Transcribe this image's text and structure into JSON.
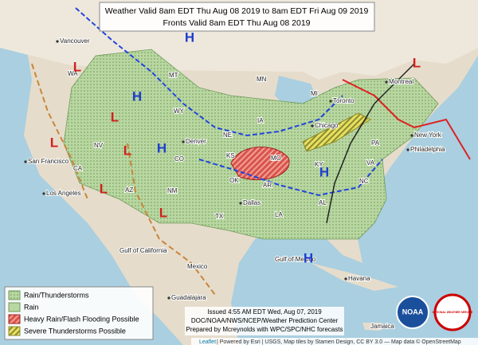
{
  "header": {
    "lines": [
      "Weather Valid 8am EDT Thu Aug 08 2019 to 8am EDT Fri Aug 09 2019",
      "Fronts Valid 8am EDT Thu Aug 08 2019"
    ]
  },
  "legend": {
    "items": [
      "Rain/Thunderstorms",
      "Rain",
      "Heavy Rain/Flash Flooding Possible",
      "Severe Thunderstorms Possible"
    ]
  },
  "credits": {
    "lines": [
      "Issued 4:55 AM EDT Wed, Aug 07, 2019",
      "DOC/NOAA/NWS/NCEP/Weather Prediction Center",
      "Prepared by Mcreynolds with WPC/SPC/NHC forecasts"
    ]
  },
  "attribution": {
    "link": "Leaflet",
    "text": "| Powered by Esri | USGS, Map tiles by Stamen Design, CC BY 3.0 — Map data © OpenStreetMap"
  },
  "logos": [
    "NOAA",
    "NATIONAL WEATHER SERVICE"
  ],
  "places": [
    "Vancouver",
    "WA",
    "MT",
    "MN",
    "Toronto",
    "Montreal",
    "WY",
    "IA",
    "Chicago",
    "PA",
    "New York",
    "Philadelphia",
    "NV",
    "Denver",
    "San Francisco",
    "CA",
    "KS",
    "MO",
    "KY",
    "VA",
    "NC",
    "OK",
    "AR",
    "AZ",
    "NM",
    "Los Angeles",
    "TX",
    "Dallas",
    "LA",
    "AL",
    "CO",
    "Gulf of California",
    "Mexico",
    "Gulf of Mexico",
    "Havana",
    "Guadalajara",
    "Jamaica",
    "MI",
    "NE"
  ],
  "pressure_centers": [
    "H",
    "L",
    "L",
    "H",
    "L",
    "L",
    "H",
    "L",
    "L",
    "H",
    "H",
    "L"
  ]
}
